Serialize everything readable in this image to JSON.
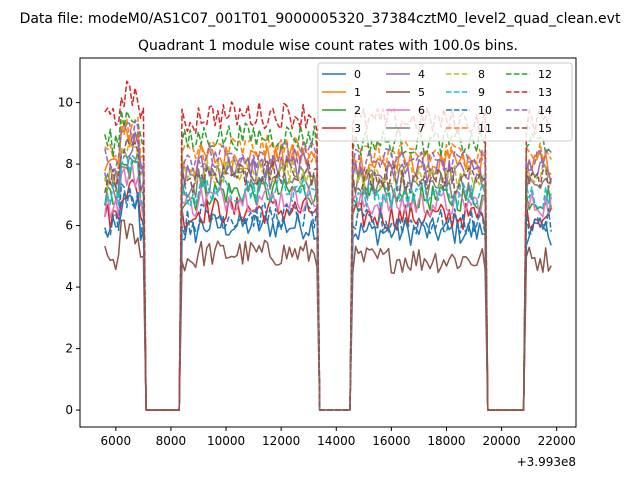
{
  "chart_data": {
    "type": "line",
    "suptitle": "Data file: modeM0/AS1C07_001T01_9000005320_37384cztM0_level2_quad_clean.evt",
    "title": "Quadrant 1 module wise count rates with 100.0s bins.",
    "xlabel": "",
    "ylabel": "",
    "x_offset_label": "+3.993e8",
    "xlim": [
      4700,
      22700
    ],
    "ylim": [
      -0.55,
      11.45
    ],
    "xticks": [
      6000,
      8000,
      10000,
      12000,
      14000,
      16000,
      18000,
      20000,
      22000
    ],
    "yticks": [
      0,
      2,
      4,
      6,
      8,
      10
    ],
    "grid": false,
    "legend_position": "top-right",
    "segments": [
      {
        "start": 5600,
        "end": 7000
      },
      {
        "start": 8400,
        "end": 13300
      },
      {
        "start": 14600,
        "end": 19400
      },
      {
        "start": 20900,
        "end": 21800
      }
    ],
    "gaps": [
      {
        "start": 7100,
        "end": 8300
      },
      {
        "start": 13400,
        "end": 14500
      },
      {
        "start": 19500,
        "end": 20800
      }
    ],
    "series": [
      {
        "name": "0",
        "color": "#1f77b4",
        "dash": "solid",
        "base": 5.8
      },
      {
        "name": "1",
        "color": "#ff7f0e",
        "dash": "solid",
        "base": 8.0
      },
      {
        "name": "2",
        "color": "#2ca02c",
        "dash": "solid",
        "base": 6.9
      },
      {
        "name": "3",
        "color": "#d62728",
        "dash": "solid",
        "base": 6.3
      },
      {
        "name": "4",
        "color": "#9467bd",
        "dash": "solid",
        "base": 7.7
      },
      {
        "name": "5",
        "color": "#8c564b",
        "dash": "solid",
        "base": 4.9
      },
      {
        "name": "6",
        "color": "#e377c2",
        "dash": "solid",
        "base": 6.7
      },
      {
        "name": "7",
        "color": "#7f7f7f",
        "dash": "solid",
        "base": 7.3
      },
      {
        "name": "8",
        "color": "#bcbd22",
        "dash": "dashed",
        "base": 7.6
      },
      {
        "name": "9",
        "color": "#17becf",
        "dash": "dashed",
        "base": 7.0
      },
      {
        "name": "10",
        "color": "#1f77b4",
        "dash": "dashed",
        "base": 6.1
      },
      {
        "name": "11",
        "color": "#ff7f0e",
        "dash": "dashed",
        "base": 8.3
      },
      {
        "name": "12",
        "color": "#2ca02c",
        "dash": "dashed",
        "base": 8.7
      },
      {
        "name": "13",
        "color": "#d62728",
        "dash": "dashed",
        "base": 9.4
      },
      {
        "name": "14",
        "color": "#9467bd",
        "dash": "dashed",
        "base": 8.1
      },
      {
        "name": "15",
        "color": "#8c564b",
        "dash": "dashed",
        "base": 7.5
      }
    ]
  }
}
